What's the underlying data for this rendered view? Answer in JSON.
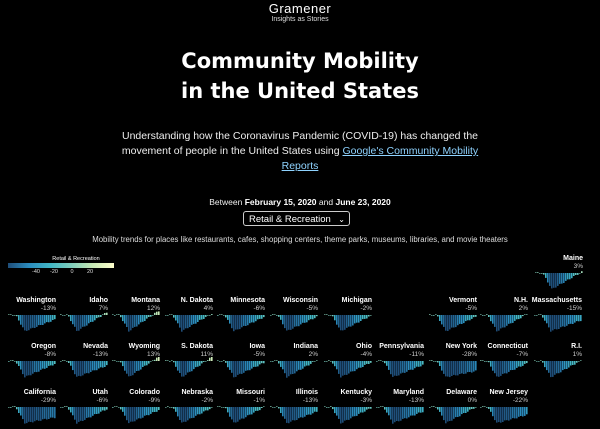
{
  "brand": {
    "name": "Gramener",
    "tagline": "Insights as Stories"
  },
  "title_line1": "Community Mobility",
  "title_line2": "in the United States",
  "description": {
    "text": "Understanding how the Coronavirus Pandemic (COVID-19) has changed the movement of people in the United States using ",
    "link": "Google's Community Mobility Reports"
  },
  "dates": {
    "prefix": "Between",
    "start": "February 15, 2020",
    "and": "and",
    "end": "June 23, 2020"
  },
  "category_select": {
    "value": "Retail & Recreation"
  },
  "subtitle": "Mobility trends for places like restaurants, cafes, shopping centers, theme parks, museums, libraries, and movie theaters",
  "legend": {
    "title": "Retail & Recreation",
    "ticks": [
      "-40",
      "-20",
      "0",
      "20"
    ]
  },
  "states": [
    {
      "name": "Maine",
      "value": "3%",
      "v": 3
    },
    {
      "name": "Washington",
      "value": "-13%",
      "v": -13
    },
    {
      "name": "Idaho",
      "value": "7%",
      "v": 7
    },
    {
      "name": "Montana",
      "value": "12%",
      "v": 12
    },
    {
      "name": "N. Dakota",
      "value": "4%",
      "v": 4
    },
    {
      "name": "Minnesota",
      "value": "-6%",
      "v": -6
    },
    {
      "name": "Wisconsin",
      "value": "-5%",
      "v": -5
    },
    {
      "name": "Michigan",
      "value": "-2%",
      "v": -2
    },
    {
      "name": "Vermont",
      "value": "-5%",
      "v": -5
    },
    {
      "name": "N.H.",
      "value": "2%",
      "v": 2
    },
    {
      "name": "Massachusetts",
      "value": "-15%",
      "v": -15
    },
    {
      "name": "Oregon",
      "value": "-8%",
      "v": -8
    },
    {
      "name": "Nevada",
      "value": "-13%",
      "v": -13
    },
    {
      "name": "Wyoming",
      "value": "13%",
      "v": 13
    },
    {
      "name": "S. Dakota",
      "value": "11%",
      "v": 11
    },
    {
      "name": "Iowa",
      "value": "-5%",
      "v": -5
    },
    {
      "name": "Indiana",
      "value": "2%",
      "v": 2
    },
    {
      "name": "Ohio",
      "value": "-4%",
      "v": -4
    },
    {
      "name": "Pennsylvania",
      "value": "-11%",
      "v": -11
    },
    {
      "name": "New York",
      "value": "-28%",
      "v": -28
    },
    {
      "name": "Connecticut",
      "value": "-7%",
      "v": -7
    },
    {
      "name": "R.I.",
      "value": "1%",
      "v": 1
    },
    {
      "name": "California",
      "value": "-29%",
      "v": -29
    },
    {
      "name": "Utah",
      "value": "-6%",
      "v": -6
    },
    {
      "name": "Colorado",
      "value": "-9%",
      "v": -9
    },
    {
      "name": "Nebraska",
      "value": "-2%",
      "v": -2
    },
    {
      "name": "Missouri",
      "value": "-1%",
      "v": -1
    },
    {
      "name": "Illinois",
      "value": "-13%",
      "v": -13
    },
    {
      "name": "Kentucky",
      "value": "-3%",
      "v": -3
    },
    {
      "name": "Maryland",
      "value": "-13%",
      "v": -13
    },
    {
      "name": "Delaware",
      "value": "0%",
      "v": 0
    },
    {
      "name": "New Jersey",
      "value": "-22%",
      "v": -22
    }
  ]
}
